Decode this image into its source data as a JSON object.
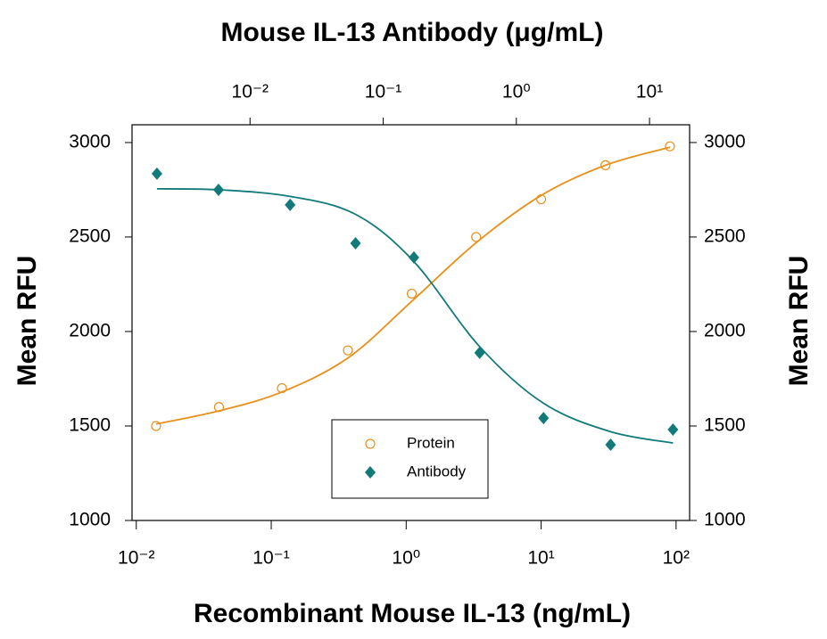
{
  "chart_data": {
    "type": "scatter",
    "title": "Mouse IL-13 Antibody (μg/mL)",
    "xlabel": "Recombinant Mouse IL-13 (ng/mL)",
    "ylabel": "Mean RFU",
    "y2label": "Mean RFU",
    "xscale": "log",
    "xlim": [
      0.0093,
      126
    ],
    "xticks": [
      {
        "value": 0.01,
        "label": "10⁻²"
      },
      {
        "value": 0.1,
        "label": "10⁻¹"
      },
      {
        "value": 1,
        "label": "10⁰"
      },
      {
        "value": 10,
        "label": "10¹"
      },
      {
        "value": 100,
        "label": "10²"
      }
    ],
    "x2lim": [
      0.0013,
      20
    ],
    "x2ticks": [
      {
        "value": 0.01,
        "label": "10⁻²"
      },
      {
        "value": 0.1,
        "label": "10⁻¹"
      },
      {
        "value": 1,
        "label": "10⁰"
      },
      {
        "value": 10,
        "label": "10¹"
      }
    ],
    "ylim": [
      1000,
      3094
    ],
    "yticks": [
      1000,
      1500,
      2000,
      2500,
      3000
    ],
    "y2lim": [
      1000,
      3094
    ],
    "y2ticks": [
      1000,
      1500,
      2000,
      2500,
      3000
    ],
    "legend": "bottom-center",
    "series": [
      {
        "name": "Protein",
        "color": "#e8901b",
        "marker": "open-circle",
        "xaxis": "x",
        "x": [
          0.014,
          0.041,
          0.12,
          0.37,
          1.1,
          3.3,
          10,
          30,
          90
        ],
        "values": [
          1500,
          1600,
          1700,
          1900,
          2200,
          2500,
          2700,
          2880,
          2980
        ],
        "fit_x": [
          0.014,
          0.041,
          0.12,
          0.37,
          1.1,
          3.3,
          10,
          30,
          90
        ],
        "fit_values": [
          1510,
          1580,
          1680,
          1860,
          2160,
          2470,
          2720,
          2880,
          2975
        ]
      },
      {
        "name": "Antibody",
        "color": "#137a7a",
        "marker": "diamond",
        "xaxis": "x2",
        "x": [
          0.002,
          0.0058,
          0.02,
          0.062,
          0.17,
          0.53,
          1.6,
          5.1,
          15
        ],
        "values": [
          2835,
          2750,
          2670,
          2467,
          2392,
          1887,
          1542,
          1401,
          1481
        ],
        "fit_x": [
          0.002,
          0.0058,
          0.02,
          0.062,
          0.17,
          0.53,
          1.6,
          5.1,
          15
        ],
        "fit_values": [
          2755,
          2750,
          2715,
          2620,
          2370,
          1920,
          1620,
          1470,
          1410
        ]
      }
    ]
  }
}
